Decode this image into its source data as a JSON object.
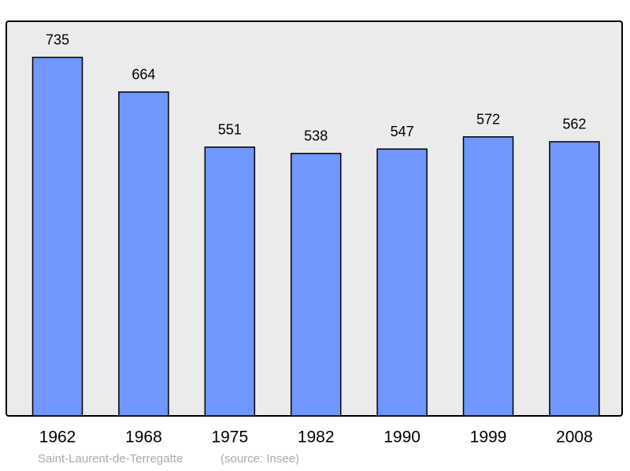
{
  "chart_data": {
    "type": "bar",
    "categories": [
      "1962",
      "1968",
      "1975",
      "1982",
      "1990",
      "1999",
      "2008"
    ],
    "values": [
      735,
      664,
      551,
      538,
      547,
      572,
      562
    ],
    "color": "#7096ff",
    "ylim": [
      0,
      809
    ],
    "caption": "Saint-Laurent-de-Terregatte",
    "source": "(source: Insee)"
  }
}
